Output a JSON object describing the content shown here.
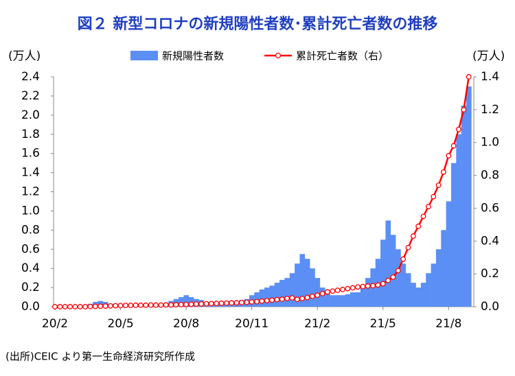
{
  "chart_data": {
    "type": "bar-line",
    "title": "図２ 新型コロナの新規陽性者数･累計死亡者数の推移",
    "y_label": "(万人)",
    "y2_label": "(万人)",
    "source": "(出所)CEIC より第一生命経済研究所作成",
    "categories": [
      "20/2",
      null,
      null,
      null,
      null,
      null,
      null,
      null,
      null,
      null,
      null,
      null,
      null,
      "20/5",
      null,
      null,
      null,
      null,
      null,
      null,
      null,
      null,
      null,
      null,
      null,
      null,
      "20/8",
      null,
      null,
      null,
      null,
      null,
      null,
      null,
      null,
      null,
      null,
      null,
      null,
      "20/11",
      null,
      null,
      null,
      null,
      null,
      null,
      null,
      null,
      null,
      null,
      null,
      null,
      "21/2",
      null,
      null,
      null,
      null,
      null,
      null,
      null,
      null,
      null,
      null,
      null,
      null,
      "21/5",
      null,
      null,
      null,
      null,
      null,
      null,
      null,
      null,
      null,
      null,
      null,
      null,
      "21/8",
      null,
      null,
      null,
      null
    ],
    "series": [
      {
        "name": "新規陽性者数",
        "color": "#5b8ff5",
        "kind": "bar",
        "values": [
          0,
          0,
          0,
          0,
          0.01,
          0.01,
          0.02,
          0.03,
          0.05,
          0.06,
          0.05,
          0.03,
          0.02,
          0.01,
          0.005,
          0.005,
          0,
          0,
          0.005,
          0.01,
          0.01,
          0.02,
          0.04,
          0.06,
          0.08,
          0.1,
          0.12,
          0.1,
          0.08,
          0.07,
          0.05,
          0.05,
          0.05,
          0.05,
          0.06,
          0.06,
          0.06,
          0.07,
          0.08,
          0.12,
          0.15,
          0.18,
          0.2,
          0.22,
          0.25,
          0.28,
          0.3,
          0.35,
          0.45,
          0.55,
          0.5,
          0.4,
          0.3,
          0.2,
          0.14,
          0.12,
          0.12,
          0.12,
          0.13,
          0.15,
          0.15,
          0.22,
          0.3,
          0.4,
          0.5,
          0.7,
          0.9,
          0.75,
          0.6,
          0.45,
          0.35,
          0.25,
          0.2,
          0.25,
          0.35,
          0.45,
          0.6,
          0.8,
          1.1,
          1.5,
          1.8,
          2.1,
          2.3
        ]
      },
      {
        "name": "累計死亡者数（右）",
        "color": "#ff0000",
        "kind": "line",
        "axis": "y2",
        "values": [
          0,
          0,
          0,
          0,
          0,
          0,
          0,
          0.001,
          0.002,
          0.003,
          0.004,
          0.005,
          0.006,
          0.007,
          0.008,
          0.008,
          0.009,
          0.009,
          0.009,
          0.01,
          0.01,
          0.01,
          0.011,
          0.011,
          0.012,
          0.013,
          0.014,
          0.015,
          0.016,
          0.017,
          0.018,
          0.019,
          0.02,
          0.021,
          0.022,
          0.023,
          0.024,
          0.025,
          0.027,
          0.029,
          0.031,
          0.034,
          0.037,
          0.04,
          0.043,
          0.046,
          0.05,
          0.054,
          0.045,
          0.05,
          0.056,
          0.063,
          0.07,
          0.08,
          0.09,
          0.095,
          0.1,
          0.105,
          0.11,
          0.115,
          0.12,
          0.123,
          0.126,
          0.128,
          0.132,
          0.14,
          0.16,
          0.18,
          0.22,
          0.29,
          0.36,
          0.43,
          0.49,
          0.55,
          0.61,
          0.67,
          0.74,
          0.82,
          0.92,
          0.98,
          1.08,
          1.2,
          1.4
        ]
      }
    ],
    "ylim": [
      0,
      2.4
    ],
    "yticks": [
      {
        "value": 0,
        "label": "0.0"
      },
      0.2,
      0.4,
      0.6,
      0.8,
      {
        "value": 1,
        "label": "1.0"
      },
      1.2,
      1.4,
      1.6,
      1.8,
      {
        "value": 2,
        "label": "2.0"
      },
      2.2,
      2.4
    ],
    "y2lim": [
      0,
      1.4
    ],
    "y2ticks": [
      {
        "value": 0,
        "label": "0.0"
      },
      0.2,
      0.4,
      0.6,
      0.8,
      {
        "value": 1,
        "label": "1.0"
      },
      1.2,
      1.4
    ]
  }
}
